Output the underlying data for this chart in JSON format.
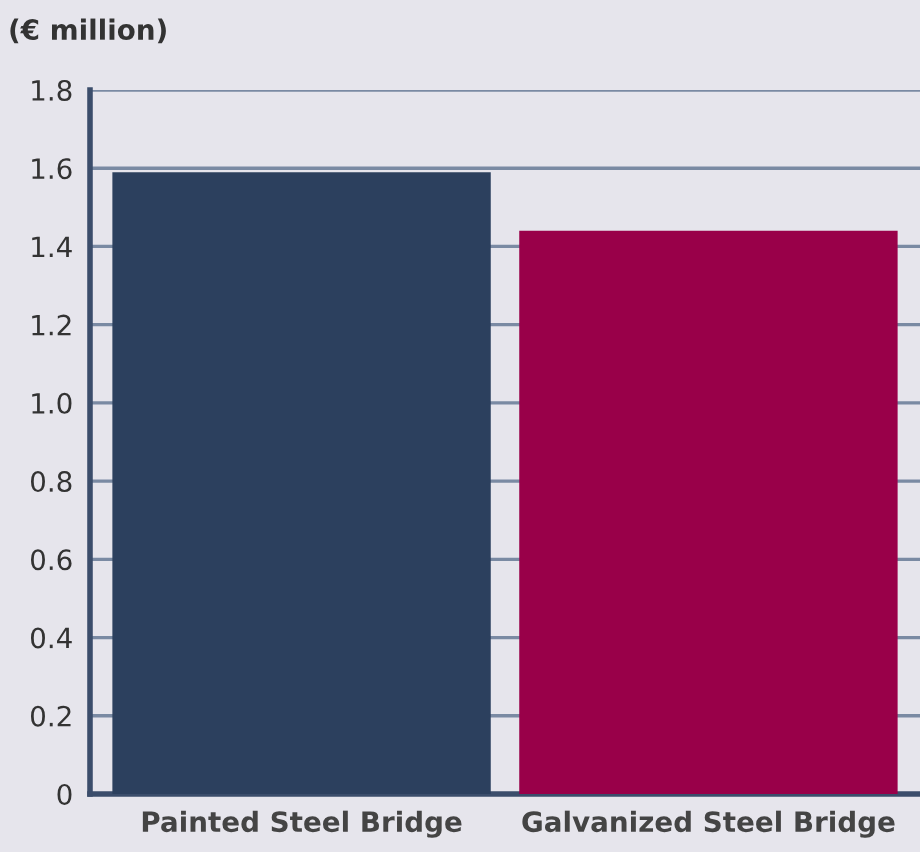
{
  "chart_data": {
    "type": "bar",
    "ylabel": "(€ million)",
    "categories": [
      "Painted Steel Bridge",
      "Galvanized Steel Bridge"
    ],
    "values": [
      1.59,
      1.44
    ],
    "colors": [
      "#2c405e",
      "#990049"
    ],
    "ylim": [
      0,
      1.8
    ],
    "yticks": [
      0,
      0.2,
      0.4,
      0.6,
      0.8,
      {
        "value": 1,
        "label": "1.0"
      },
      1.2,
      1.4,
      1.6,
      1.8
    ],
    "grid": "y"
  }
}
